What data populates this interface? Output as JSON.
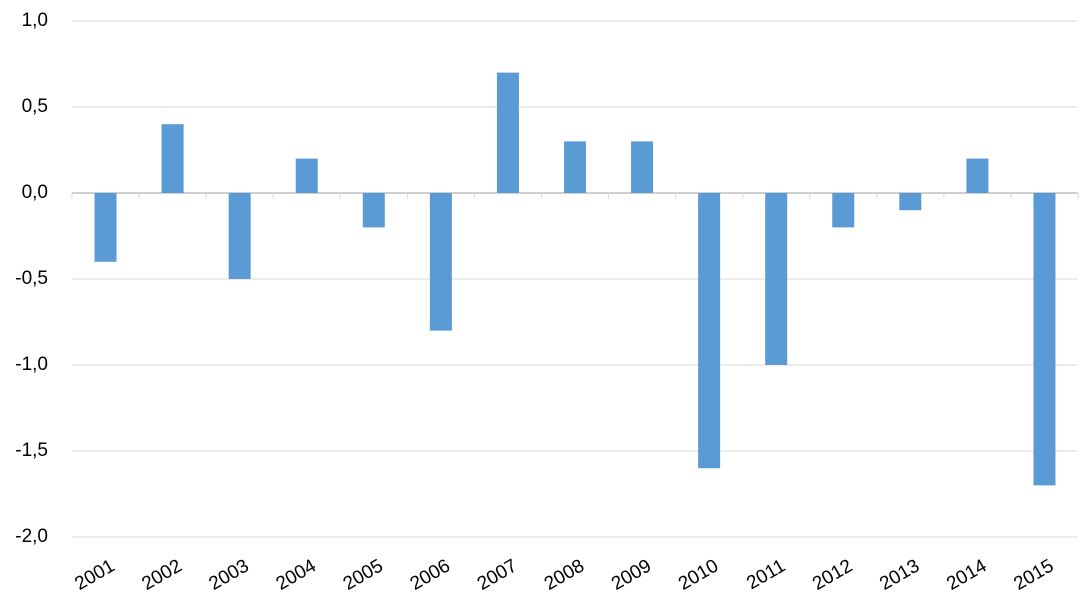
{
  "chart_data": {
    "type": "bar",
    "categories": [
      "2001",
      "2002",
      "2003",
      "2004",
      "2005",
      "2006",
      "2007",
      "2008",
      "2009",
      "2010",
      "2011",
      "2012",
      "2013",
      "2014",
      "2015"
    ],
    "values": [
      -0.4,
      0.4,
      -0.5,
      0.2,
      -0.2,
      -0.8,
      0.7,
      0.3,
      0.3,
      -1.6,
      -1.0,
      -0.2,
      -0.1,
      0.2,
      -1.7
    ],
    "color": "#5b9bd5",
    "ylim": [
      -2,
      1
    ],
    "yticks": [
      {
        "value": -2,
        "label": "-2,0"
      },
      {
        "value": -1.5,
        "label": "-1,5"
      },
      {
        "value": -1,
        "label": "-1,0"
      },
      {
        "value": -0.5,
        "label": "-0,5"
      },
      {
        "value": 0,
        "label": "0,0"
      },
      {
        "value": 0.5,
        "label": "0,5"
      },
      {
        "value": 1,
        "label": "1,0"
      }
    ],
    "grid": true
  }
}
